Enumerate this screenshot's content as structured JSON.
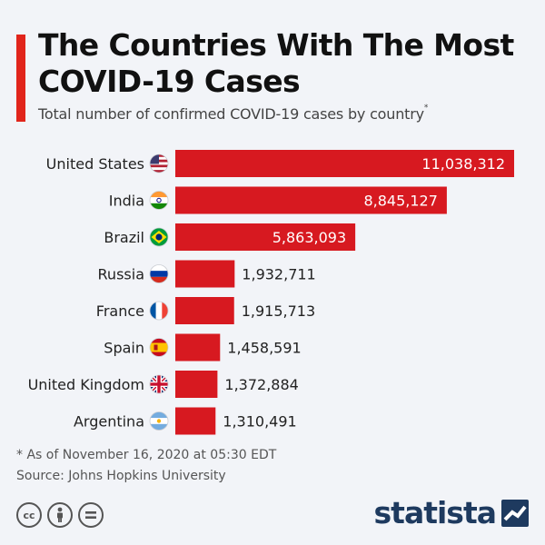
{
  "header": {
    "title": "The Countries With The Most COVID-19 Cases",
    "subtitle": "Total number of confirmed COVID-19 cases by country",
    "subtitle_marker": "*"
  },
  "chart_data": {
    "type": "bar",
    "orientation": "horizontal",
    "title": "The Countries With The Most COVID-19 Cases",
    "subtitle": "Total number of confirmed COVID-19 cases by country",
    "categories": [
      "United States",
      "India",
      "Brazil",
      "Russia",
      "France",
      "Spain",
      "United Kingdom",
      "Argentina"
    ],
    "values": [
      11038312,
      8845127,
      5863093,
      1932711,
      1915713,
      1458591,
      1372884,
      1310491
    ],
    "value_labels": [
      "11,038,312",
      "8,845,127",
      "5,863,093",
      "1,932,711",
      "1,915,713",
      "1,458,591",
      "1,372,884",
      "1,310,491"
    ],
    "flags": [
      "us-flag-icon",
      "india-flag-icon",
      "brazil-flag-icon",
      "russia-flag-icon",
      "france-flag-icon",
      "spain-flag-icon",
      "uk-flag-icon",
      "argentina-flag-icon"
    ],
    "xlim": [
      0,
      11600000
    ],
    "grid": false,
    "legend": "none",
    "bar_color": "#d71920"
  },
  "footer": {
    "footnote": "* As of November 16, 2020 at 05:30 EDT",
    "source": "Source: Johns Hopkins University",
    "brand": "statista",
    "cc_icons": [
      "cc-icon",
      "attribution-icon",
      "no-derivatives-icon"
    ]
  },
  "colors": {
    "accent": "#e1251b",
    "bar": "#d71920",
    "background": "#f2f4f8",
    "brand": "#1e3a5f"
  }
}
